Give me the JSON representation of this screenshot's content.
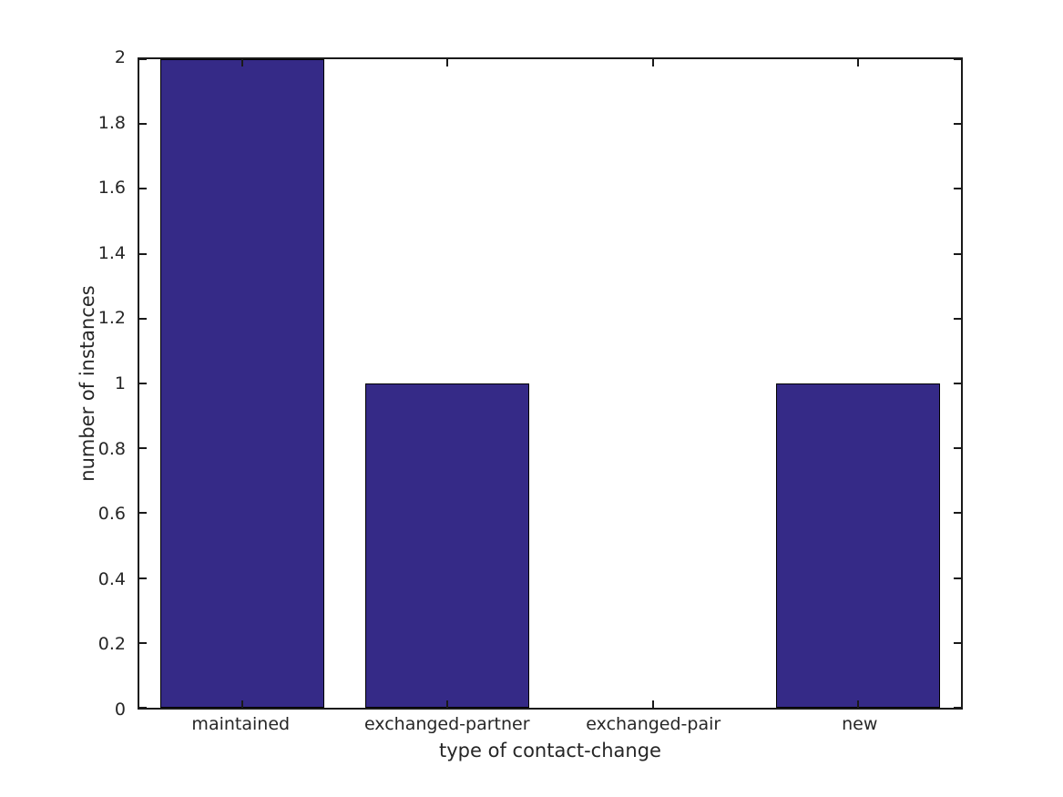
{
  "figure": {
    "background": "#ffffff"
  },
  "chart_data": {
    "type": "bar",
    "title": "",
    "categories": [
      "maintained",
      "exchanged-partner",
      "exchanged-pair",
      "new"
    ],
    "values": [
      2,
      1,
      0,
      1
    ],
    "xlabel": "type of contact-change",
    "ylabel": "number of instances",
    "ylim": [
      0,
      2
    ],
    "yticks": [
      0,
      0.2,
      0.4,
      0.6,
      0.8,
      1,
      1.2,
      1.4,
      1.6,
      1.8,
      2
    ],
    "ytick_labels": [
      "0",
      "0.2",
      "0.4",
      "0.6",
      "0.8",
      "1",
      "1.2",
      "1.4",
      "1.6",
      "1.8",
      "2"
    ],
    "bar_width_fraction": 0.8,
    "grid": false,
    "legend": "none",
    "tick_direction": "in",
    "box": true,
    "colors": {
      "bar_fill": "#352a87",
      "bar_edge": "#000000",
      "axis": "#1a1a1a",
      "text": "#262626",
      "background": "#ffffff"
    }
  }
}
